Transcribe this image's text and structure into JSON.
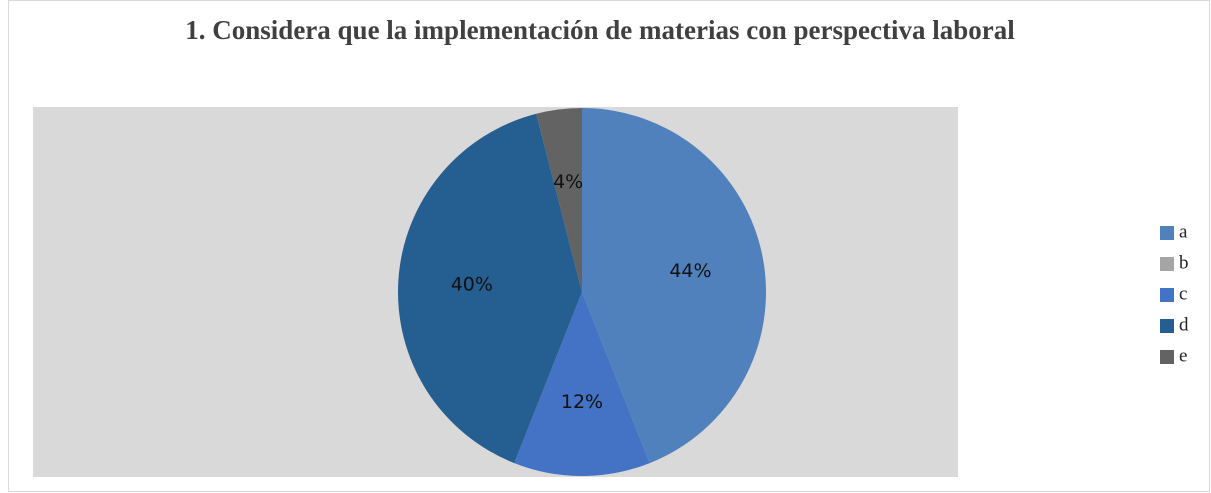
{
  "chart_data": {
    "type": "pie",
    "title": "1. Considera que la implementación de materias con perspectiva laboral",
    "categories": [
      "a",
      "b",
      "c",
      "d",
      "e"
    ],
    "values": [
      44,
      0,
      12,
      40,
      4
    ],
    "value_labels": [
      "44%",
      null,
      "12%",
      "40%",
      "4%"
    ],
    "colors": [
      "#5081bd",
      "#a5a5a5",
      "#4472c4",
      "#255e91",
      "#636363"
    ],
    "legend": "right"
  }
}
